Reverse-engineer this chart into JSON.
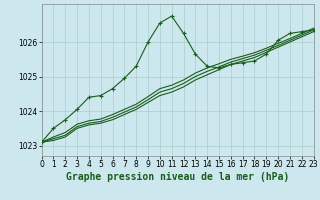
{
  "title": "Graphe pression niveau de la mer (hPa)",
  "background_color": "#cce8ee",
  "grid_color": "#aacccc",
  "line_color": "#1a5c1a",
  "xlim": [
    0,
    23
  ],
  "ylim": [
    1022.7,
    1027.1
  ],
  "yticks": [
    1023,
    1024,
    1025,
    1026
  ],
  "xticks": [
    0,
    1,
    2,
    3,
    4,
    5,
    6,
    7,
    8,
    9,
    10,
    11,
    12,
    13,
    14,
    15,
    16,
    17,
    18,
    19,
    20,
    21,
    22,
    23
  ],
  "series1_x": [
    0,
    1,
    2,
    3,
    4,
    5,
    6,
    7,
    8,
    9,
    10,
    11,
    12,
    13,
    14,
    15,
    16,
    17,
    18,
    19,
    20,
    21,
    22,
    23
  ],
  "series1_y": [
    1023.1,
    1023.5,
    1023.75,
    1024.05,
    1024.4,
    1024.45,
    1024.65,
    1024.95,
    1025.3,
    1026.0,
    1026.55,
    1026.75,
    1026.25,
    1025.65,
    1025.3,
    1025.25,
    1025.35,
    1025.4,
    1025.45,
    1025.65,
    1026.05,
    1026.25,
    1026.3,
    1026.35
  ],
  "series2_x": [
    0,
    1,
    2,
    3,
    4,
    5,
    6,
    7,
    8,
    9,
    10,
    11,
    12,
    13,
    14,
    15,
    16,
    17,
    18,
    19,
    20,
    21,
    22,
    23
  ],
  "series2_y": [
    1023.1,
    1023.15,
    1023.25,
    1023.5,
    1023.6,
    1023.65,
    1023.75,
    1023.9,
    1024.05,
    1024.25,
    1024.45,
    1024.55,
    1024.7,
    1024.9,
    1025.05,
    1025.2,
    1025.35,
    1025.45,
    1025.55,
    1025.7,
    1025.85,
    1026.0,
    1026.15,
    1026.3
  ],
  "series3_x": [
    0,
    1,
    2,
    3,
    4,
    5,
    6,
    7,
    8,
    9,
    10,
    11,
    12,
    13,
    14,
    15,
    16,
    17,
    18,
    19,
    20,
    21,
    22,
    23
  ],
  "series3_y": [
    1023.1,
    1023.2,
    1023.3,
    1023.55,
    1023.65,
    1023.7,
    1023.82,
    1023.97,
    1024.12,
    1024.33,
    1024.55,
    1024.65,
    1024.8,
    1025.0,
    1025.15,
    1025.28,
    1025.42,
    1025.52,
    1025.62,
    1025.76,
    1025.9,
    1026.05,
    1026.2,
    1026.35
  ],
  "series4_x": [
    0,
    1,
    2,
    3,
    4,
    5,
    6,
    7,
    8,
    9,
    10,
    11,
    12,
    13,
    14,
    15,
    16,
    17,
    18,
    19,
    20,
    21,
    22,
    23
  ],
  "series4_y": [
    1023.1,
    1023.25,
    1023.38,
    1023.62,
    1023.72,
    1023.77,
    1023.9,
    1024.05,
    1024.2,
    1024.42,
    1024.65,
    1024.75,
    1024.9,
    1025.1,
    1025.25,
    1025.37,
    1025.5,
    1025.59,
    1025.69,
    1025.82,
    1025.96,
    1026.1,
    1026.25,
    1026.4
  ],
  "xlabel_fontsize": 7.0,
  "tick_fontsize": 5.5
}
